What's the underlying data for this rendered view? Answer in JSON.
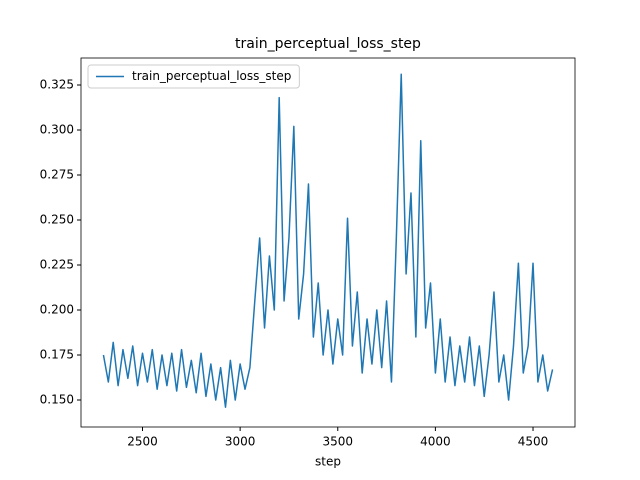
{
  "chart_data": {
    "type": "line",
    "title": "train_perceptual_loss_step",
    "xlabel": "step",
    "x": [
      2300,
      2325,
      2350,
      2375,
      2400,
      2425,
      2450,
      2475,
      2500,
      2525,
      2550,
      2575,
      2600,
      2625,
      2650,
      2675,
      2700,
      2725,
      2750,
      2775,
      2800,
      2825,
      2850,
      2875,
      2900,
      2925,
      2950,
      2975,
      3000,
      3025,
      3050,
      3075,
      3100,
      3125,
      3150,
      3175,
      3200,
      3225,
      3250,
      3275,
      3300,
      3325,
      3350,
      3375,
      3400,
      3425,
      3450,
      3475,
      3500,
      3525,
      3550,
      3575,
      3600,
      3625,
      3650,
      3675,
      3700,
      3725,
      3750,
      3775,
      3800,
      3825,
      3850,
      3875,
      3900,
      3925,
      3950,
      3975,
      4000,
      4025,
      4050,
      4075,
      4100,
      4125,
      4150,
      4175,
      4200,
      4225,
      4250,
      4275,
      4300,
      4325,
      4350,
      4375,
      4400,
      4425,
      4450,
      4475,
      4500,
      4525,
      4550,
      4575,
      4600
    ],
    "series": [
      {
        "name": "train_perceptual_loss_step",
        "color": "#1f77b4",
        "values": [
          0.175,
          0.16,
          0.182,
          0.158,
          0.178,
          0.162,
          0.18,
          0.158,
          0.176,
          0.16,
          0.178,
          0.156,
          0.175,
          0.158,
          0.176,
          0.155,
          0.178,
          0.157,
          0.172,
          0.154,
          0.176,
          0.152,
          0.17,
          0.15,
          0.168,
          0.146,
          0.172,
          0.15,
          0.17,
          0.156,
          0.168,
          0.205,
          0.24,
          0.19,
          0.23,
          0.2,
          0.318,
          0.205,
          0.24,
          0.302,
          0.195,
          0.22,
          0.27,
          0.185,
          0.215,
          0.175,
          0.2,
          0.17,
          0.195,
          0.175,
          0.251,
          0.18,
          0.21,
          0.165,
          0.195,
          0.17,
          0.2,
          0.168,
          0.205,
          0.16,
          0.24,
          0.331,
          0.22,
          0.265,
          0.185,
          0.294,
          0.19,
          0.215,
          0.165,
          0.195,
          0.16,
          0.185,
          0.158,
          0.18,
          0.16,
          0.185,
          0.158,
          0.18,
          0.152,
          0.175,
          0.21,
          0.16,
          0.175,
          0.15,
          0.18,
          0.226,
          0.165,
          0.18,
          0.226,
          0.16,
          0.175,
          0.155,
          0.167
        ]
      }
    ],
    "xlim": [
      2185,
      4715
    ],
    "xticks": [
      2500,
      3000,
      3500,
      4000,
      4500
    ],
    "ylim": [
      0.135,
      0.34
    ],
    "yticks": [
      {
        "value": 0.15,
        "label": "0.150"
      },
      0.175,
      {
        "value": 0.2,
        "label": "0.200"
      },
      0.225,
      {
        "value": 0.25,
        "label": "0.250"
      },
      0.275,
      {
        "value": 0.3,
        "label": "0.300"
      },
      0.325
    ],
    "legend": "upper left"
  }
}
